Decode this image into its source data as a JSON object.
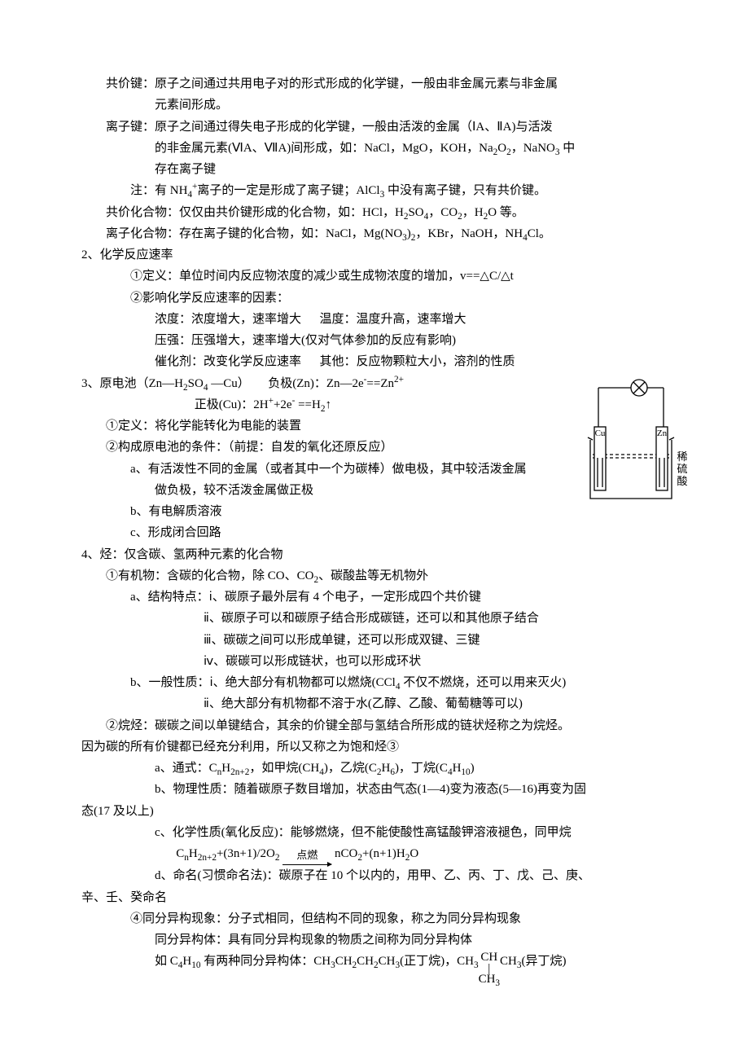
{
  "lines": [
    {
      "cls": "indent1",
      "html": "共价键：原子之间通过共用电子对的形式形成的化学键，一般由非金属元素与非金属"
    },
    {
      "cls": "indent3",
      "html": "元素间形成。"
    },
    {
      "cls": "indent1",
      "html": "离子键：原子之间通过得失电子形成的化学键，一般由活泼的金属（ⅠA、ⅡA)与活泼"
    },
    {
      "cls": "indent3",
      "html": "的非金属元素(ⅥA、ⅦA)间形成，如：NaCl，MgO，KOH，Na<sub>2</sub>O<sub>2</sub>，NaNO<sub>3</sub> 中"
    },
    {
      "cls": "indent3",
      "html": "存在离子键"
    },
    {
      "cls": "indent2",
      "html": "注：有 NH<sub>4</sub><sup>+</sup>离子的一定是形成了离子键；AlCl<sub>3</sub> 中没有离子键，只有共价键。"
    },
    {
      "cls": "indent1",
      "html": "共价化合物：仅仅由共价键形成的化合物，如：HCl，H<sub>2</sub>SO<sub>4</sub>，CO<sub>2</sub>，H<sub>2</sub>O 等。"
    },
    {
      "cls": "indent1",
      "html": "离子化合物：存在离子键的化合物，如：NaCl，Mg(NO<sub>3</sub>)<sub>2</sub>，KBr，NaOH，NH<sub>4</sub>Cl。"
    },
    {
      "cls": "indent0",
      "html": "2、化学反应速率"
    },
    {
      "cls": "indent2",
      "html": "①定义：单位时间内反应物浓度的减少或生成物浓度的增加，v==△C/△t"
    },
    {
      "cls": "indent2",
      "html": "②影响化学反应速率的因素："
    },
    {
      "cls": "indent3",
      "html": "浓度：浓度增大，速率增大&nbsp;&nbsp;&nbsp;&nbsp;&nbsp;&nbsp;温度：温度升高，速率增大"
    },
    {
      "cls": "indent3",
      "html": "压强：压强增大，速率增大(仅对气体参加的反应有影响)"
    },
    {
      "cls": "indent3",
      "html": "催化剂：改变化学反应速率&nbsp;&nbsp;&nbsp;&nbsp;&nbsp;&nbsp;其他：反应物颗粒大小，溶剂的性质"
    },
    {
      "cls": "indent0",
      "html": "3、原电池（Zn—H<sub>2</sub>SO<sub>4</sub> —Cu）&nbsp;&nbsp;&nbsp;&nbsp;&nbsp;&nbsp;负极(Zn)：Zn—2e<sup>-</sup>==Zn<sup>2+</sup>",
      "figure": true
    },
    {
      "cls": "indent0",
      "html": "&nbsp;&nbsp;&nbsp;&nbsp;&nbsp;&nbsp;&nbsp;&nbsp;&nbsp;&nbsp;&nbsp;&nbsp;&nbsp;&nbsp;&nbsp;&nbsp;&nbsp;&nbsp;&nbsp;&nbsp;&nbsp;&nbsp;&nbsp;&nbsp;&nbsp;&nbsp;&nbsp;&nbsp;&nbsp;&nbsp;&nbsp;&nbsp;&nbsp;&nbsp;&nbsp;&nbsp;&nbsp;正极(Cu)：2H<sup>+</sup>+2e<sup>-</sup> ==H<sub>2</sub>↑"
    },
    {
      "cls": "indent1",
      "html": "①定义：将化学能转化为电能的装置"
    },
    {
      "cls": "indent1",
      "html": "②构成原电池的条件：（前提：自发的氧化还原反应）"
    },
    {
      "cls": "indent2",
      "html": "a、有活泼性不同的金属（或者其中一个为碳棒）做电极，其中较活泼金属"
    },
    {
      "cls": "indent3",
      "html": "做负极，较不活泼金属做正极"
    },
    {
      "cls": "indent2",
      "html": "b、有电解质溶液"
    },
    {
      "cls": "indent2",
      "html": "c、形成闭合回路"
    },
    {
      "cls": "indent0 clear",
      "html": "4、烃：仅含碳、氢两种元素的化合物"
    },
    {
      "cls": "indent1",
      "html": "①有机物：含碳的化合物，除 CO、CO<sub>2</sub>、碳酸盐等无机物外"
    },
    {
      "cls": "indent2",
      "html": "a、结构特点：ⅰ、碳原子最外层有 4 个电子，一定形成四个共价键"
    },
    {
      "cls": "indent5",
      "html": "ⅱ、碳原子可以和碳原子结合形成碳链，还可以和其他原子结合"
    },
    {
      "cls": "indent5",
      "html": "ⅲ、碳碳之间可以形成单键，还可以形成双键、三键"
    },
    {
      "cls": "indent5",
      "html": "ⅳ、碳碳可以形成链状，也可以形成环状"
    },
    {
      "cls": "indent2",
      "html": "b、一般性质：ⅰ、绝大部分有机物都可以燃烧(CCl<sub>4</sub> 不仅不燃烧，还可以用来灭火)"
    },
    {
      "cls": "indent5",
      "html": "ⅱ、绝大部分有机物都不溶于水(乙醇、乙酸、葡萄糖等可以)"
    },
    {
      "cls": "indent1",
      "html": "②烷烃：碳碳之间以单键结合，其余的价键全部与氢结合所形成的链状烃称之为烷烃。"
    },
    {
      "cls": "indent0",
      "html": "因为碳的所有价键都已经充分利用，所以又称之为饱和烃③"
    },
    {
      "cls": "indent3",
      "html": "a、通式：C<sub>n</sub>H<sub>2n+2</sub>，如甲烷(CH<sub>4</sub>)，乙烷(C<sub>2</sub>H<sub>6</sub>)，丁烷(C<sub>4</sub>H<sub>10</sub>)"
    },
    {
      "cls": "indent3",
      "html": "b、物理性质：随着碳原子数目增加，状态由气态(1—4)变为液态(5—16)再变为固"
    },
    {
      "cls": "indent0",
      "html": "态(17 及以上)"
    },
    {
      "cls": "indent3",
      "html": "c、化学性质(氧化反应)：能够燃烧，但不能使酸性高锰酸钾溶液褪色，同甲烷"
    },
    {
      "cls": "indent0",
      "html": "&nbsp;&nbsp;&nbsp;&nbsp;&nbsp;&nbsp;&nbsp;&nbsp;&nbsp;&nbsp;&nbsp;&nbsp;&nbsp;&nbsp;&nbsp;&nbsp;&nbsp;&nbsp;&nbsp;&nbsp;&nbsp;&nbsp;&nbsp;&nbsp;&nbsp;&nbsp;&nbsp;&nbsp;&nbsp;&nbsp;&nbsp;C<sub>n</sub>H<sub>2n+2</sub>+(3n+1)/2O<sub>2</sub> <span class=\"arrow-label\"><span class=\"txt\">点燃</span><span class=\"ln\"></span></span> nCO<sub>2</sub>+(n+1)H<sub>2</sub>O"
    },
    {
      "cls": "indent3",
      "html": "d、命名(习惯命名法)：碳原子在 10 个以内的，用甲、乙、丙、丁、戊、己、庚、"
    },
    {
      "cls": "indent0",
      "html": "辛、壬、癸命名"
    },
    {
      "cls": "indent2",
      "html": "④同分异构现象：分子式相同，但结构不同的现象，称之为同分异构现象"
    },
    {
      "cls": "indent3",
      "html": "同分异构体：具有同分异构现象的物质之间称为同分异构体"
    },
    {
      "cls": "indent3",
      "html": "如 C<sub>4</sub>H<sub>10</sub> 有两种同分异构体：CH<sub>3</sub>CH<sub>2</sub>CH<sub>2</sub>CH<sub>3</sub>(正丁烷)，CH<sub>3</sub><span class=\"ch3-frag\">CH<span class=\"bar\">|</span><span>CH<sub>3</sub></span></span>CH<sub>3</sub>(异丁烷)"
    }
  ],
  "figure": {
    "cu_label": "Cu",
    "zn_label": "Zn",
    "acid_label": "稀硫酸",
    "stroke": "#000000",
    "bg": "#ffffff"
  }
}
